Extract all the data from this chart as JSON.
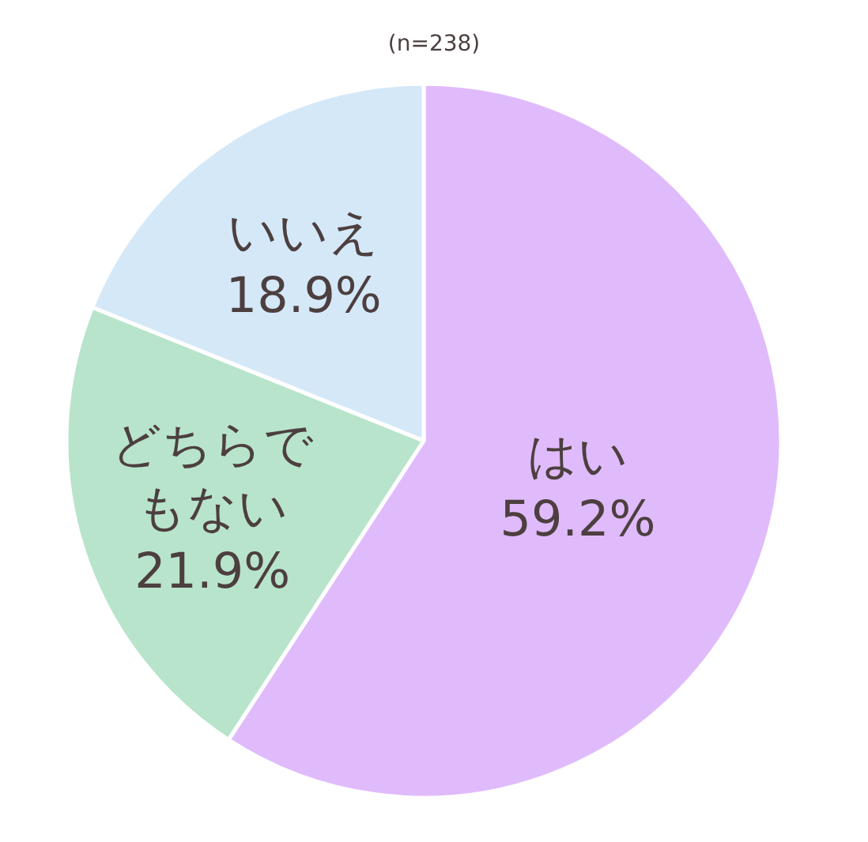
{
  "chart_data": {
    "type": "pie",
    "subtitle": "(n=238)",
    "categories": [
      "はい",
      "どちらでもない",
      "いいえ"
    ],
    "values": [
      59.2,
      21.9,
      18.9
    ],
    "colors": [
      "#e0bbfc",
      "#b8e4cc",
      "#d4e8f8"
    ],
    "value_labels": [
      "59.2%",
      "21.9%",
      "18.9%"
    ]
  }
}
